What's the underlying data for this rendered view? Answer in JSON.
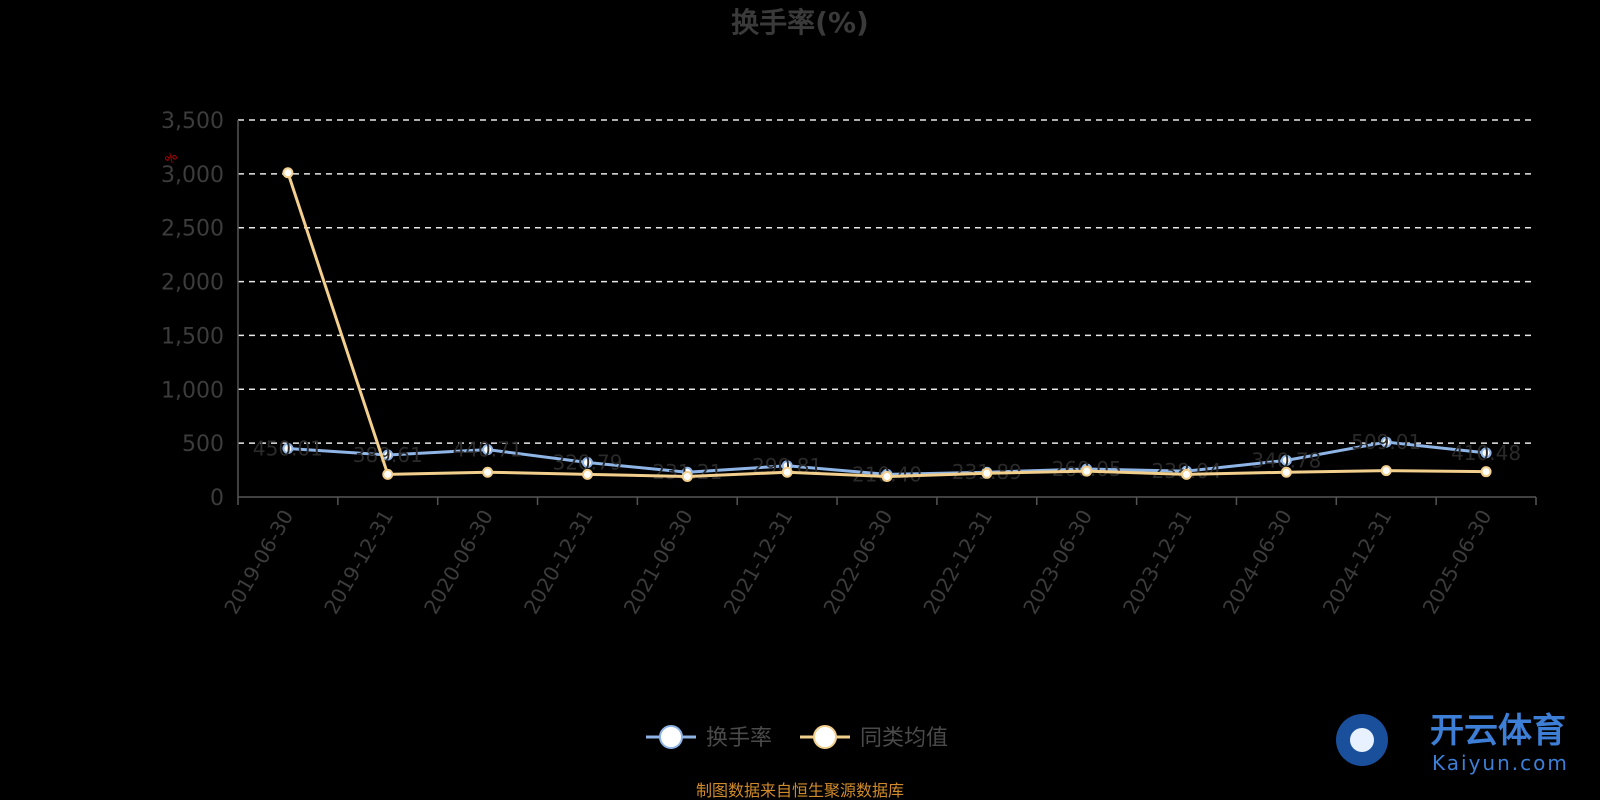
{
  "chart_data": {
    "type": "line",
    "title": "换手率(%)",
    "unit": "%",
    "categories": [
      "2019-06-30",
      "2019-12-31",
      "2020-06-30",
      "2020-12-31",
      "2021-06-30",
      "2021-12-31",
      "2022-06-30",
      "2022-12-31",
      "2023-06-30",
      "2023-12-31",
      "2024-06-30",
      "2024-12-31",
      "2025-06-30"
    ],
    "ylim": [
      0,
      3500
    ],
    "yticks": [
      "0",
      "500",
      "1,000",
      "1,500",
      "2,000",
      "2,500",
      "3,000",
      "3,500"
    ],
    "grid": true,
    "legend_position": "bottom",
    "series": [
      {
        "name": "换手率",
        "color": "#8fb4e6",
        "values": [
          450,
          390,
          440,
          320,
          230,
          290,
          210,
          230,
          260,
          240,
          340,
          510,
          410
        ],
        "labels": [
          "450.01",
          "389.61",
          "440.71",
          "320.79",
          "231.21",
          "290.81",
          "210.40",
          "231.89",
          "260.05",
          "238.04",
          "340.78",
          "509.01",
          "410.48"
        ]
      },
      {
        "name": "同类均值",
        "color": "#f2cf8c",
        "values": [
          3010,
          210,
          230,
          210,
          190,
          230,
          190,
          220,
          240,
          210,
          230,
          245,
          235
        ]
      }
    ]
  },
  "footer": {
    "source": "制图数据来自恒生聚源数据库"
  },
  "watermark": {
    "cn": "开云体育",
    "en": "Kaiyun.com"
  }
}
